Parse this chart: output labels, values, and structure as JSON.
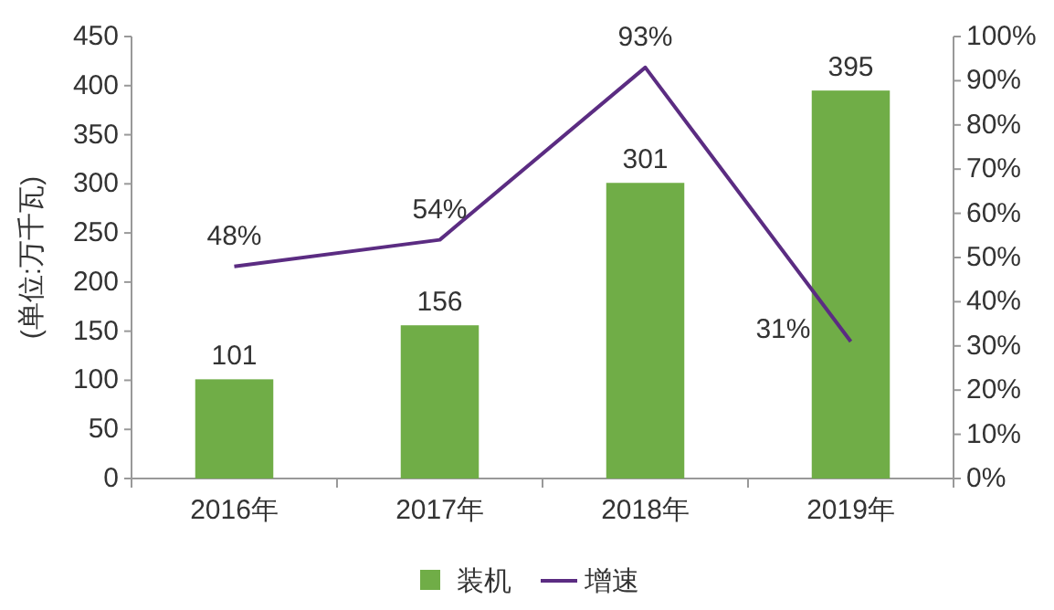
{
  "chart_data": {
    "type": "bar",
    "ylabel": "(单位:万千瓦)",
    "categories": [
      "2016年",
      "2017年",
      "2018年",
      "2019年"
    ],
    "series": [
      {
        "name": "装机",
        "color": "#70ad47",
        "values": [
          101,
          156,
          301,
          395
        ],
        "value_labels": [
          "101",
          "156",
          "301",
          "395"
        ]
      },
      {
        "name": "增速",
        "type": "line",
        "axis": "y2",
        "color": "#5b2c82",
        "values": [
          48,
          54,
          93,
          31
        ],
        "value_labels": [
          "48%",
          "54%",
          "93%",
          "31%"
        ]
      }
    ],
    "ylim": [
      0,
      450
    ],
    "yticks": [
      0,
      50,
      100,
      150,
      200,
      250,
      300,
      350,
      400,
      450
    ],
    "y2lim": [
      0,
      100
    ],
    "y2ticks": [
      {
        "value": 0,
        "label": "0%"
      },
      {
        "value": 10,
        "label": "10%"
      },
      {
        "value": 20,
        "label": "20%"
      },
      {
        "value": 30,
        "label": "30%"
      },
      {
        "value": 40,
        "label": "40%"
      },
      {
        "value": 50,
        "label": "50%"
      },
      {
        "value": 60,
        "label": "60%"
      },
      {
        "value": 70,
        "label": "70%"
      },
      {
        "value": 80,
        "label": "80%"
      },
      {
        "value": 90,
        "label": "90%"
      },
      {
        "value": 100,
        "label": "100%"
      }
    ],
    "grid": false,
    "legend": "bottom"
  }
}
